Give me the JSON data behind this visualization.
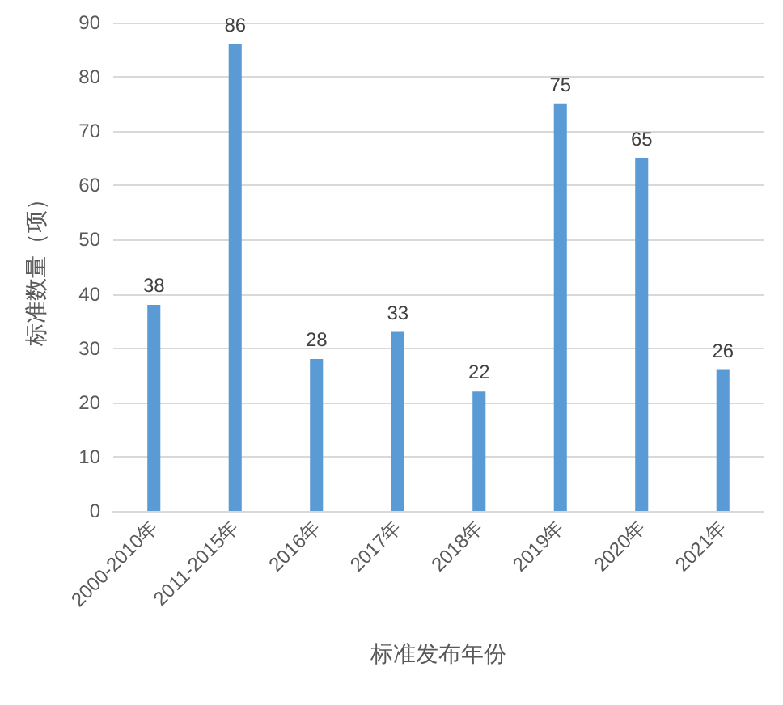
{
  "chart_data": {
    "type": "bar",
    "xlabel": "标准发布年份",
    "ylabel": "标准数量（项）",
    "categories": [
      "2000-2010年",
      "2011-2015年",
      "2016年",
      "2017年",
      "2018年",
      "2019年",
      "2020年",
      "2021年"
    ],
    "values": [
      38,
      86,
      28,
      33,
      22,
      75,
      65,
      26
    ],
    "color": "#5b9bd5",
    "ylim": [
      0,
      90
    ],
    "yticks": [
      0,
      10,
      20,
      30,
      40,
      50,
      60,
      70,
      80,
      90
    ],
    "grid": "y",
    "data_labels": true
  }
}
